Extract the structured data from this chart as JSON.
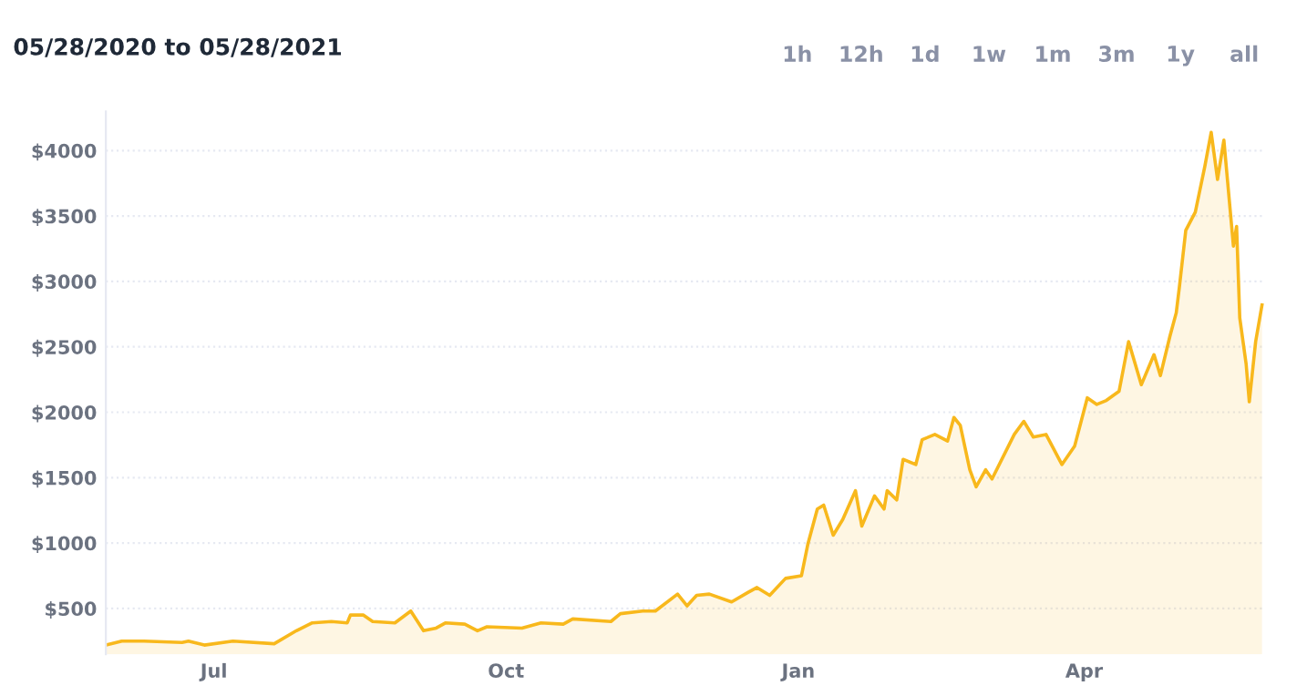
{
  "chart_data": {
    "type": "area",
    "title": "05/28/2020 to 05/28/2021",
    "annotations": [
      "1h",
      "12h",
      "1d",
      "1w",
      "1m",
      "3m",
      "1y",
      "all"
    ],
    "x": [
      "2020-05-28",
      "2020-06-02",
      "2020-06-09",
      "2020-06-21",
      "2020-06-23",
      "2020-06-28",
      "2020-07-07",
      "2020-07-20",
      "2020-07-27",
      "2020-08-01",
      "2020-08-07",
      "2020-08-12",
      "2020-08-13",
      "2020-08-17",
      "2020-08-20",
      "2020-08-27",
      "2020-09-01",
      "2020-09-05",
      "2020-09-09",
      "2020-09-12",
      "2020-09-18",
      "2020-09-22",
      "2020-09-25",
      "2020-10-06",
      "2020-10-12",
      "2020-10-19",
      "2020-10-22",
      "2020-11-03",
      "2020-11-06",
      "2020-11-13",
      "2020-11-17",
      "2020-11-24",
      "2020-11-27",
      "2020-11-30",
      "2020-12-04",
      "2020-12-11",
      "2020-12-16",
      "2020-12-19",
      "2020-12-23",
      "2020-12-28",
      "2021-01-02",
      "2021-01-04",
      "2021-01-07",
      "2021-01-09",
      "2021-01-12",
      "2021-01-15",
      "2021-01-19",
      "2021-01-21",
      "2021-01-25",
      "2021-01-28",
      "2021-01-29",
      "2021-02-01",
      "2021-02-03",
      "2021-02-07",
      "2021-02-09",
      "2021-02-13",
      "2021-02-17",
      "2021-02-19",
      "2021-02-21",
      "2021-02-24",
      "2021-02-26",
      "2021-03-01",
      "2021-03-03",
      "2021-03-10",
      "2021-03-13",
      "2021-03-16",
      "2021-03-20",
      "2021-03-25",
      "2021-03-29",
      "2021-04-02",
      "2021-04-05",
      "2021-04-08",
      "2021-04-12",
      "2021-04-15",
      "2021-04-19",
      "2021-04-23",
      "2021-04-25",
      "2021-04-28",
      "2021-04-30",
      "2021-05-01",
      "2021-05-03",
      "2021-05-06",
      "2021-05-09",
      "2021-05-11",
      "2021-05-13",
      "2021-05-15",
      "2021-05-18",
      "2021-05-19",
      "2021-05-20",
      "2021-05-22",
      "2021-05-23",
      "2021-05-25",
      "2021-05-27"
    ],
    "series": [
      {
        "color": "#f8b81c",
        "values": [
          220,
          250,
          250,
          240,
          250,
          220,
          250,
          230,
          330,
          390,
          400,
          390,
          450,
          450,
          400,
          390,
          480,
          330,
          350,
          390,
          380,
          330,
          360,
          350,
          390,
          380,
          420,
          400,
          460,
          480,
          480,
          610,
          520,
          600,
          610,
          550,
          620,
          660,
          600,
          730,
          750,
          990,
          1260,
          1290,
          1060,
          1180,
          1400,
          1130,
          1360,
          1260,
          1400,
          1330,
          1640,
          1600,
          1790,
          1830,
          1780,
          1960,
          1900,
          1560,
          1430,
          1560,
          1490,
          1830,
          1930,
          1810,
          1830,
          1600,
          1740,
          2110,
          2060,
          2090,
          2160,
          2540,
          2210,
          2440,
          2280,
          2580,
          2760,
          2960,
          3390,
          3530,
          3880,
          4140,
          3780,
          4080,
          3270,
          3420,
          2720,
          2370,
          2080,
          2540,
          2820
        ]
      }
    ],
    "xlim": [
      "2020-05-28",
      "2021-05-28"
    ],
    "ylim": [
      150,
      4300
    ],
    "xticks": [
      {
        "value": "2020-07-01",
        "label": "Jul"
      },
      {
        "value": "2020-10-01",
        "label": "Oct"
      },
      {
        "value": "2021-01-01",
        "label": "Jan"
      },
      {
        "value": "2021-04-01",
        "label": "Apr"
      }
    ],
    "yticks": [
      {
        "value": 500,
        "label": "$500"
      },
      {
        "value": 1000,
        "label": "$1000"
      },
      {
        "value": 1500,
        "label": "$1500"
      },
      {
        "value": 2000,
        "label": "$2000"
      },
      {
        "value": 2500,
        "label": "$2500"
      },
      {
        "value": 3000,
        "label": "$3000"
      },
      {
        "value": 3500,
        "label": "$3500"
      },
      {
        "value": 4000,
        "label": "$4000"
      }
    ],
    "grid": "y",
    "legend": false,
    "marker": "none",
    "line_style": "solid"
  }
}
